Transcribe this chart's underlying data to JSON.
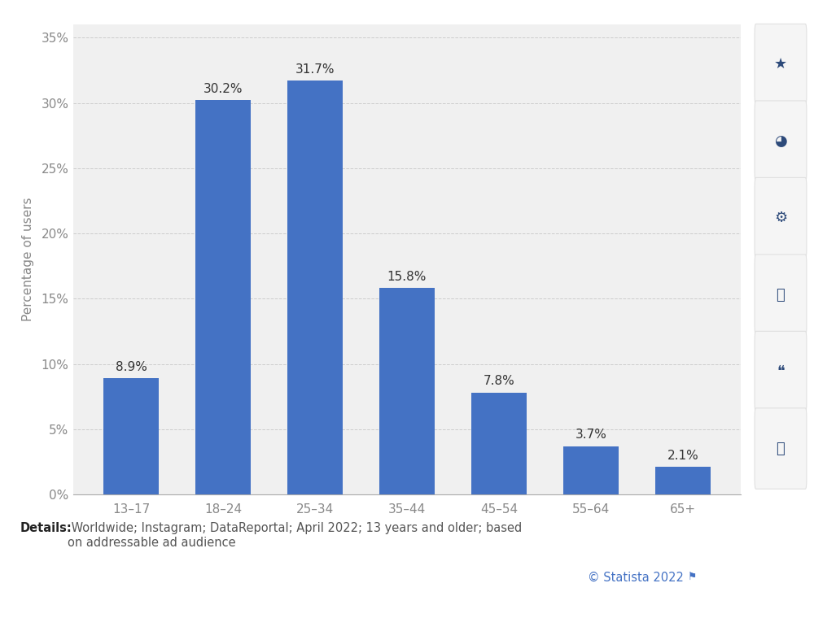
{
  "categories": [
    "13–17",
    "18–24",
    "25–34",
    "35–44",
    "45–54",
    "55–64",
    "65+"
  ],
  "values": [
    8.9,
    30.2,
    31.7,
    15.8,
    7.8,
    3.7,
    2.1
  ],
  "bar_color": "#4472c4",
  "ylabel": "Percentage of users",
  "ylim": [
    0,
    36
  ],
  "yticks": [
    0,
    5,
    10,
    15,
    20,
    25,
    30,
    35
  ],
  "ytick_labels": [
    "0%",
    "5%",
    "10%",
    "15%",
    "20%",
    "25%",
    "30%",
    "35%"
  ],
  "bg_color": "#ffffff",
  "plot_bg_color": "#f0f0f0",
  "grid_color": "#cccccc",
  "bar_label_fontsize": 11,
  "axis_label_fontsize": 11,
  "tick_label_fontsize": 11,
  "details_bold": "Details:",
  "details_normal": " Worldwide; Instagram; DataReportal; April 2022; 13 years and older; based\non addressable ad audience",
  "copyright_text": "© Statista 2022",
  "details_fontsize": 10.5,
  "copyright_color": "#4472c4",
  "sidebar_bg": "#ffffff",
  "sidebar_icon_color": "#2d4a7a",
  "sidebar_btn_color": "#f5f5f5"
}
